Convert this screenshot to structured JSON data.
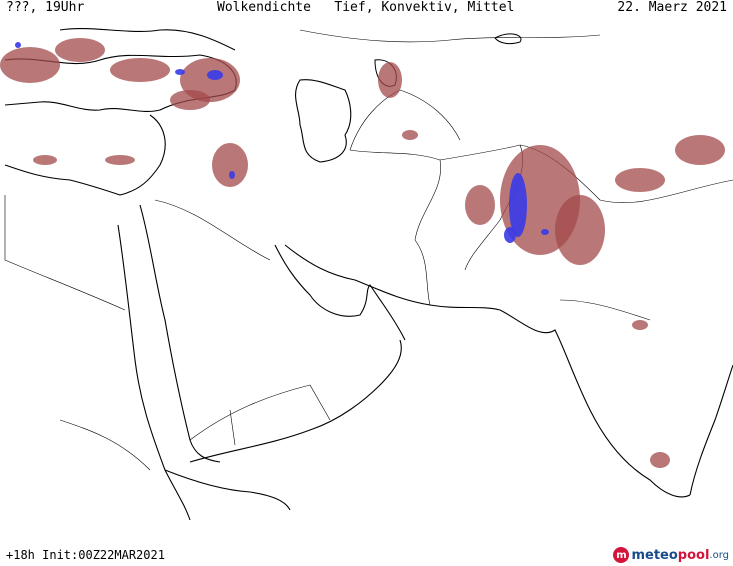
{
  "header": {
    "time_label": "???, 19Uhr",
    "title": "Wolkendichte   Tief, Konvektiv, Mittel",
    "date": "22. Maerz 2021"
  },
  "footer": {
    "run_info": "+18h  Init:00Z22MAR2021"
  },
  "logo": {
    "part1": "meteo",
    "part2": "pool",
    "part3": ".org"
  },
  "colors": {
    "background": "#ffffff",
    "cloud_low": "#a34a4a",
    "cloud_convective": "#3a3ae8",
    "border": "#000000",
    "logo_red": "#d4143c",
    "logo_blue": "#1a4b8c"
  }
}
